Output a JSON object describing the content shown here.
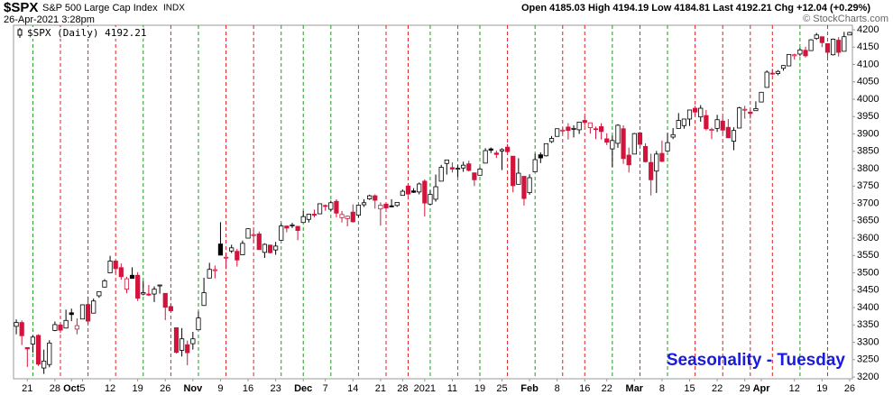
{
  "chart_data": {
    "type": "candlestick",
    "symbol": "$SPX",
    "name": "S&P 500 Large Cap Index",
    "exchange": "INDX",
    "timestamp": "26-Apr-2021 3:28pm",
    "quote": "Open 4185.03 High 4194.19 Low 4184.81 Last 4192.21 Chg +12.04 (+0.29%)",
    "watermark": "© StockCharts.com",
    "legend": "$SPX (Daily) 4192.21",
    "annotation": "Seasonality - Tuesday",
    "up_color": "#000000",
    "down_color": "#d2143c",
    "annotation_color": "#1a1adc",
    "tuesday_up_color": "#1f9a1f",
    "tuesday_down_color": "#e02020",
    "x": [
      "2020-09-17",
      "2020-09-18",
      "2020-09-21",
      "2020-09-22",
      "2020-09-23",
      "2020-09-24",
      "2020-09-25",
      "2020-09-28",
      "2020-09-29",
      "2020-09-30",
      "2020-10-01",
      "2020-10-02",
      "2020-10-05",
      "2020-10-06",
      "2020-10-07",
      "2020-10-08",
      "2020-10-09",
      "2020-10-12",
      "2020-10-13",
      "2020-10-14",
      "2020-10-15",
      "2020-10-16",
      "2020-10-19",
      "2020-10-20",
      "2020-10-21",
      "2020-10-22",
      "2020-10-23",
      "2020-10-26",
      "2020-10-27",
      "2020-10-28",
      "2020-10-29",
      "2020-10-30",
      "2020-11-02",
      "2020-11-03",
      "2020-11-04",
      "2020-11-05",
      "2020-11-06",
      "2020-11-09",
      "2020-11-10",
      "2020-11-11",
      "2020-11-12",
      "2020-11-13",
      "2020-11-16",
      "2020-11-17",
      "2020-11-18",
      "2020-11-19",
      "2020-11-20",
      "2020-11-23",
      "2020-11-24",
      "2020-11-25",
      "2020-11-27",
      "2020-11-30",
      "2020-12-01",
      "2020-12-02",
      "2020-12-03",
      "2020-12-04",
      "2020-12-07",
      "2020-12-08",
      "2020-12-09",
      "2020-12-10",
      "2020-12-11",
      "2020-12-14",
      "2020-12-15",
      "2020-12-16",
      "2020-12-17",
      "2020-12-18",
      "2020-12-21",
      "2020-12-22",
      "2020-12-23",
      "2020-12-24",
      "2020-12-28",
      "2020-12-29",
      "2020-12-30",
      "2020-12-31",
      "2021-01-04",
      "2021-01-05",
      "2021-01-06",
      "2021-01-07",
      "2021-01-08",
      "2021-01-11",
      "2021-01-12",
      "2021-01-13",
      "2021-01-14",
      "2021-01-15",
      "2021-01-19",
      "2021-01-20",
      "2021-01-21",
      "2021-01-22",
      "2021-01-25",
      "2021-01-26",
      "2021-01-27",
      "2021-01-28",
      "2021-01-29",
      "2021-02-01",
      "2021-02-02",
      "2021-02-03",
      "2021-02-04",
      "2021-02-05",
      "2021-02-08",
      "2021-02-09",
      "2021-02-10",
      "2021-02-11",
      "2021-02-12",
      "2021-02-16",
      "2021-02-17",
      "2021-02-18",
      "2021-02-19",
      "2021-02-22",
      "2021-02-23",
      "2021-02-24",
      "2021-02-25",
      "2021-02-26",
      "2021-03-01",
      "2021-03-02",
      "2021-03-03",
      "2021-03-04",
      "2021-03-05",
      "2021-03-08",
      "2021-03-09",
      "2021-03-10",
      "2021-03-11",
      "2021-03-12",
      "2021-03-15",
      "2021-03-16",
      "2021-03-17",
      "2021-03-18",
      "2021-03-19",
      "2021-03-22",
      "2021-03-23",
      "2021-03-24",
      "2021-03-25",
      "2021-03-26",
      "2021-03-29",
      "2021-03-30",
      "2021-03-31",
      "2021-04-01",
      "2021-04-05",
      "2021-04-06",
      "2021-04-07",
      "2021-04-08",
      "2021-04-09",
      "2021-04-12",
      "2021-04-13",
      "2021-04-14",
      "2021-04-15",
      "2021-04-16",
      "2021-04-19",
      "2021-04-20",
      "2021-04-21",
      "2021-04-22",
      "2021-04-23",
      "2021-04-26"
    ],
    "open": [
      3346,
      3357,
      3285,
      3295,
      3320,
      3226,
      3236,
      3334,
      3350,
      3341,
      3385,
      3338,
      3367,
      3409,
      3384,
      3434,
      3459,
      3500,
      3534,
      3515,
      3453,
      3493,
      3493,
      3439,
      3439,
      3439,
      3464,
      3441,
      3403,
      3342,
      3277,
      3293,
      3296,
      3336,
      3406,
      3485,
      3509,
      3583,
      3543,
      3563,
      3562,
      3552,
      3600,
      3610,
      3612,
      3559,
      3580,
      3566,
      3594,
      3635,
      3638,
      3634,
      3645,
      3654,
      3669,
      3670,
      3694,
      3683,
      3706,
      3659,
      3656,
      3675,
      3666,
      3696,
      3713,
      3722,
      3684,
      3698,
      3693,
      3694,
      3723,
      3750,
      3736,
      3733,
      3764,
      3698,
      3712,
      3764,
      3815,
      3803,
      3801,
      3802,
      3814,
      3788,
      3781,
      3816,
      3857,
      3845,
      3851,
      3862,
      3836,
      3755,
      3778,
      3731,
      3791,
      3840,
      3837,
      3878,
      3893,
      3910,
      3920,
      3916,
      3912,
      3939,
      3918,
      3915,
      3921,
      3886,
      3857,
      3873,
      3915,
      3839,
      3842,
      3903,
      3864,
      3818,
      3793,
      3844,
      3851,
      3891,
      3916,
      3924,
      3943,
      3974,
      3949,
      3953,
      3913,
      3916,
      3937,
      3919,
      3879,
      3917,
      3969,
      3963,
      3967,
      3992,
      4034,
      4075,
      4074,
      4089,
      4096,
      4125,
      4130,
      4141,
      4140,
      4175,
      4180,
      4160,
      4128,
      4170,
      4138,
      4185.03
    ],
    "high": [
      3366,
      3363,
      3285,
      3320,
      3323,
      3279,
      3306,
      3360,
      3357,
      3394,
      3397,
      3369,
      3409,
      3432,
      3426,
      3447,
      3482,
      3549,
      3534,
      3527,
      3489,
      3516,
      3502,
      3476,
      3465,
      3461,
      3466,
      3441,
      3410,
      3342,
      3341,
      3305,
      3330,
      3389,
      3486,
      3529,
      3521,
      3646,
      3557,
      3581,
      3569,
      3593,
      3628,
      3623,
      3619,
      3585,
      3581,
      3589,
      3642,
      3635,
      3644,
      3634,
      3678,
      3670,
      3682,
      3699,
      3697,
      3708,
      3712,
      3678,
      3665,
      3697,
      3695,
      3712,
      3725,
      3726,
      3703,
      3698,
      3712,
      3703,
      3740,
      3756,
      3744,
      3760,
      3769,
      3738,
      3783,
      3811,
      3826,
      3818,
      3810,
      3820,
      3823,
      3788,
      3804,
      3859,
      3861,
      3852,
      3859,
      3871,
      3836,
      3830,
      3778,
      3784,
      3843,
      3847,
      3872,
      3894,
      3916,
      3918,
      3931,
      3925,
      3935,
      3950,
      3933,
      3921,
      3931,
      3902,
      3895,
      3928,
      3925,
      3861,
      3903,
      3906,
      3873,
      3843,
      3851,
      3881,
      3903,
      3917,
      3960,
      3944,
      3970,
      3981,
      3983,
      3969,
      3918,
      3955,
      3949,
      3943,
      3919,
      3978,
      3981,
      3969,
      3994,
      4021,
      4083,
      4087,
      4084,
      4098,
      4129,
      4131,
      4148,
      4151,
      4173,
      4191,
      4180,
      4160,
      4175,
      4179,
      4194,
      4194.19
    ],
    "low": [
      3323,
      3292,
      3229,
      3270,
      3232,
      3209,
      3228,
      3332,
      3327,
      3340,
      3361,
      3323,
      3367,
      3354,
      3384,
      3428,
      3458,
      3500,
      3500,
      3480,
      3441,
      3483,
      3419,
      3435,
      3433,
      3416,
      3440,
      3364,
      3388,
      3268,
      3259,
      3234,
      3279,
      3336,
      3405,
      3485,
      3484,
      3555,
      3511,
      3557,
      3518,
      3552,
      3600,
      3588,
      3567,
      3543,
      3556,
      3552,
      3594,
      3617,
      3629,
      3594,
      3645,
      3645,
      3660,
      3670,
      3679,
      3678,
      3660,
      3645,
      3634,
      3645,
      3660,
      3690,
      3710,
      3685,
      3636,
      3676,
      3689,
      3690,
      3723,
      3723,
      3730,
      3726,
      3662,
      3695,
      3705,
      3764,
      3783,
      3789,
      3776,
      3791,
      3792,
      3750,
      3781,
      3816,
      3845,
      3831,
      3796,
      3847,
      3732,
      3755,
      3694,
      3725,
      3791,
      3816,
      3835,
      3874,
      3892,
      3902,
      3884,
      3890,
      3900,
      3923,
      3901,
      3885,
      3884,
      3868,
      3805,
      3860,
      3814,
      3789,
      3842,
      3868,
      3818,
      3723,
      3730,
      3819,
      3851,
      3885,
      3916,
      3915,
      3923,
      3953,
      3935,
      3910,
      3885,
      3906,
      3902,
      3889,
      3853,
      3917,
      3944,
      3944,
      3966,
      3992,
      4034,
      4069,
      4069,
      4082,
      4095,
      4114,
      4124,
      4120,
      4140,
      4171,
      4150,
      4119,
      4126,
      4123,
      4138,
      4184.81
    ],
    "close": [
      3357,
      3319,
      3281,
      3315,
      3237,
      3246,
      3298,
      3351,
      3335,
      3363,
      3380,
      3348,
      3408,
      3361,
      3419,
      3446,
      3477,
      3534,
      3512,
      3489,
      3483,
      3484,
      3427,
      3443,
      3436,
      3453,
      3465,
      3401,
      3391,
      3271,
      3310,
      3270,
      3310,
      3370,
      3443,
      3510,
      3509,
      3551,
      3545,
      3572,
      3537,
      3585,
      3627,
      3610,
      3567,
      3582,
      3558,
      3577,
      3635,
      3629,
      3638,
      3622,
      3662,
      3669,
      3666,
      3699,
      3692,
      3702,
      3672,
      3668,
      3663,
      3647,
      3695,
      3702,
      3722,
      3709,
      3695,
      3687,
      3690,
      3703,
      3735,
      3727,
      3732,
      3756,
      3701,
      3726,
      3748,
      3804,
      3825,
      3799,
      3801,
      3810,
      3795,
      3768,
      3799,
      3852,
      3853,
      3841,
      3855,
      3849,
      3751,
      3787,
      3714,
      3774,
      3826,
      3831,
      3872,
      3887,
      3915,
      3911,
      3910,
      3916,
      3934,
      3933,
      3932,
      3913,
      3907,
      3876,
      3881,
      3925,
      3829,
      3811,
      3901,
      3870,
      3820,
      3768,
      3842,
      3821,
      3875,
      3898,
      3939,
      3943,
      3969,
      3963,
      3974,
      3915,
      3913,
      3941,
      3911,
      3889,
      3910,
      3975,
      3971,
      3959,
      3973,
      4020,
      4078,
      4074,
      4080,
      4097,
      4129,
      4128,
      4142,
      4125,
      4171,
      4185,
      4163,
      4135,
      4173,
      4135,
      4180,
      4192.21
    ],
    "xticks": [
      {
        "value": "2020-09-21",
        "label": "21"
      },
      {
        "value": "2020-09-28",
        "label": "28"
      },
      {
        "value": "2020-10-01",
        "label": "Oct"
      },
      {
        "value": "2020-10-05",
        "label": "5"
      },
      {
        "value": "2020-10-12",
        "label": "12"
      },
      {
        "value": "2020-10-19",
        "label": "19"
      },
      {
        "value": "2020-10-26",
        "label": "26"
      },
      {
        "value": "2020-11-02",
        "label": "Nov"
      },
      {
        "value": "2020-11-09",
        "label": "9"
      },
      {
        "value": "2020-11-16",
        "label": "16"
      },
      {
        "value": "2020-11-23",
        "label": "23"
      },
      {
        "value": "2020-12-01",
        "label": "Dec"
      },
      {
        "value": "2020-12-07",
        "label": "7"
      },
      {
        "value": "2020-12-14",
        "label": "14"
      },
      {
        "value": "2020-12-21",
        "label": "21"
      },
      {
        "value": "2020-12-28",
        "label": "28"
      },
      {
        "value": "2021-01-04",
        "label": "2021"
      },
      {
        "value": "2021-01-11",
        "label": "11"
      },
      {
        "value": "2021-01-19",
        "label": "19"
      },
      {
        "value": "2021-01-25",
        "label": "25"
      },
      {
        "value": "2021-02-01",
        "label": "Feb"
      },
      {
        "value": "2021-02-08",
        "label": "8"
      },
      {
        "value": "2021-02-16",
        "label": "16"
      },
      {
        "value": "2021-02-22",
        "label": "22"
      },
      {
        "value": "2021-03-01",
        "label": "Mar"
      },
      {
        "value": "2021-03-08",
        "label": "8"
      },
      {
        "value": "2021-03-15",
        "label": "15"
      },
      {
        "value": "2021-03-22",
        "label": "22"
      },
      {
        "value": "2021-03-29",
        "label": "29"
      },
      {
        "value": "2021-04-01",
        "label": "Apr"
      },
      {
        "value": "2021-04-12",
        "label": "12"
      },
      {
        "value": "2021-04-19",
        "label": "19"
      },
      {
        "value": "2021-04-26",
        "label": "26"
      }
    ],
    "ylim": [
      3195,
      4213
    ],
    "yticks": [
      3200,
      3250,
      3300,
      3350,
      3400,
      3450,
      3500,
      3550,
      3600,
      3650,
      3700,
      3750,
      3800,
      3850,
      3900,
      3950,
      4000,
      4050,
      4100,
      4150,
      4200
    ]
  }
}
